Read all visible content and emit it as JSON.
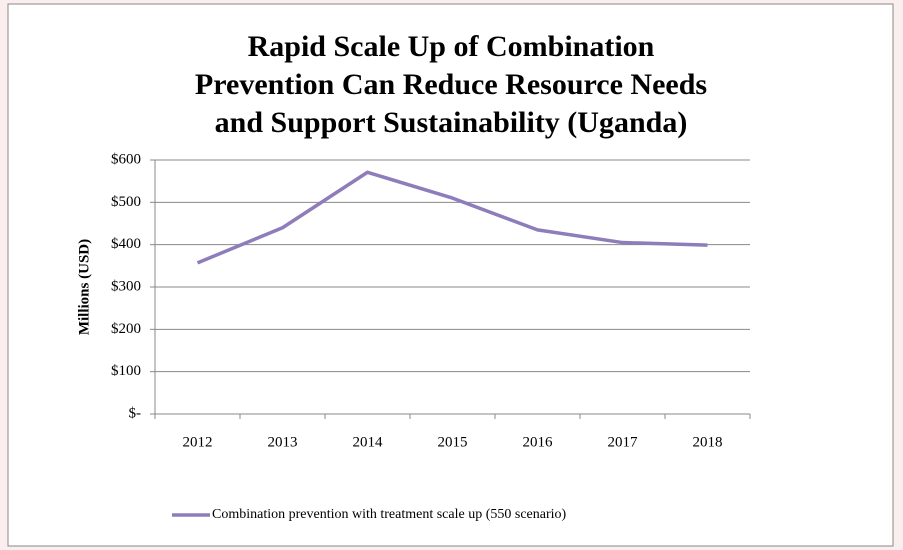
{
  "chart_data": {
    "type": "line",
    "title": [
      "Rapid Scale Up of Combination",
      "Prevention Can Reduce Resource Needs",
      "and Support Sustainability (Uganda)"
    ],
    "y_label": "Millions (USD)",
    "categories": [
      "2012",
      "2013",
      "2014",
      "2015",
      "2016",
      "2017",
      "2018"
    ],
    "series": [
      {
        "name": "Combination prevention with treatment scale up (550 scenario)",
        "color": "#8e7cbb",
        "values": [
          357,
          440,
          571,
          510,
          435,
          405,
          399
        ]
      }
    ],
    "ylim": [
      0,
      600
    ],
    "yticks": [
      {
        "value": 0,
        "label": "$-"
      },
      {
        "value": 100,
        "label": "$100"
      },
      {
        "value": 200,
        "label": "$200"
      },
      {
        "value": 300,
        "label": "$300"
      },
      {
        "value": 400,
        "label": "$400"
      },
      {
        "value": 500,
        "label": "$500"
      },
      {
        "value": 600,
        "label": "$600"
      }
    ],
    "grid": true,
    "legend": "bottom"
  }
}
